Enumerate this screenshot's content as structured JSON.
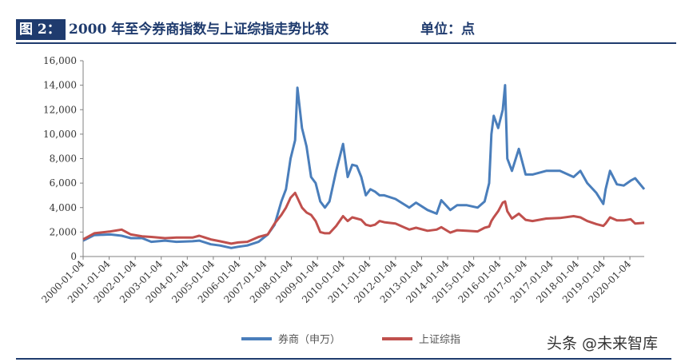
{
  "header": {
    "figure_label": "图 2：",
    "title": "2000 年至今券商指数与上证综指走势比较",
    "unit": "单位：点"
  },
  "watermark": "头条 @未来智库",
  "colors": {
    "brokerage": "#4a7ebb",
    "shanghai": "#c0504d",
    "axis": "#808080",
    "title": "#1f3b6e"
  },
  "chart_data": {
    "type": "line",
    "title": "2000 年至今券商指数与上证综指走势比较",
    "unit": "单位：点",
    "xlabel": "",
    "ylabel": "",
    "ylim": [
      0,
      16000
    ],
    "yticks": [
      0,
      2000,
      4000,
      6000,
      8000,
      10000,
      12000,
      14000,
      16000
    ],
    "ytick_labels": [
      "0",
      "2,000",
      "4,000",
      "6,000",
      "8,000",
      "10,000",
      "12,000",
      "14,000",
      "16,000"
    ],
    "xlim": [
      "2000-01-04",
      "2020-06-30"
    ],
    "xtick_labels": [
      "2000-01-04",
      "2001-01-04",
      "2002-01-04",
      "2003-01-04",
      "2004-01-04",
      "2005-01-04",
      "2006-01-04",
      "2007-01-04",
      "2008-01-04",
      "2009-01-04",
      "2010-01-04",
      "2011-01-04",
      "2012-01-04",
      "2013-01-04",
      "2014-01-04",
      "2015-01-04",
      "2016-01-04",
      "2017-01-04",
      "2017-01-04",
      "2018-01-04",
      "2019-01-04",
      "2020-01-04"
    ],
    "grid": false,
    "legend_position": "bottom",
    "series": [
      {
        "name": "券商（申万）",
        "color": "#4a7ebb",
        "x": [
          "2000-01-04",
          "2000-06-01",
          "2001-01-01",
          "2001-06-01",
          "2001-10-01",
          "2002-03-01",
          "2002-07-01",
          "2003-01-01",
          "2003-06-01",
          "2004-01-01",
          "2004-04-01",
          "2004-09-01",
          "2005-01-01",
          "2005-06-01",
          "2005-09-01",
          "2006-01-01",
          "2006-06-01",
          "2006-10-01",
          "2007-01-01",
          "2007-04-01",
          "2007-06-01",
          "2007-08-01",
          "2007-10-01",
          "2007-11-01",
          "2008-01-01",
          "2008-03-01",
          "2008-05-01",
          "2008-07-01",
          "2008-09-01",
          "2008-11-01",
          "2009-01-01",
          "2009-04-01",
          "2009-07-01",
          "2009-09-01",
          "2009-11-01",
          "2010-01-01",
          "2010-03-01",
          "2010-05-01",
          "2010-07-01",
          "2010-09-01",
          "2010-11-01",
          "2011-01-01",
          "2011-06-01",
          "2011-12-01",
          "2012-03-01",
          "2012-08-01",
          "2012-12-01",
          "2013-02-01",
          "2013-06-01",
          "2013-09-01",
          "2014-01-01",
          "2014-06-01",
          "2014-09-01",
          "2014-11-01",
          "2014-12-01",
          "2015-01-01",
          "2015-03-01",
          "2015-05-01",
          "2015-06-01",
          "2015-07-01",
          "2015-09-01",
          "2015-12-01",
          "2016-03-01",
          "2016-06-01",
          "2016-12-01",
          "2017-06-01",
          "2017-12-01",
          "2018-03-01",
          "2018-06-01",
          "2018-10-01",
          "2019-01-01",
          "2019-02-01",
          "2019-04-01",
          "2019-07-01",
          "2019-10-01",
          "2020-01-01",
          "2020-03-01",
          "2020-06-30"
        ],
        "y": [
          1300,
          1750,
          1800,
          1700,
          1500,
          1500,
          1200,
          1300,
          1200,
          1250,
          1300,
          1000,
          900,
          700,
          800,
          900,
          1200,
          1800,
          2600,
          4500,
          5500,
          8000,
          9500,
          13800,
          10500,
          9000,
          6500,
          6000,
          4500,
          4000,
          4500,
          7000,
          9200,
          6500,
          7500,
          7400,
          6500,
          5000,
          5500,
          5300,
          5000,
          5000,
          4700,
          4000,
          4400,
          3800,
          3500,
          4600,
          3800,
          4200,
          4200,
          4000,
          4500,
          6000,
          10000,
          11500,
          10500,
          12000,
          14000,
          8000,
          7000,
          8800,
          6700,
          6700,
          7000,
          7000,
          6500,
          7000,
          6000,
          5200,
          4300,
          5500,
          7000,
          5900,
          5800,
          6200,
          6400,
          5500
        ]
      },
      {
        "name": "上证综指",
        "color": "#c0504d",
        "x": [
          "2000-01-04",
          "2000-06-01",
          "2001-01-01",
          "2001-06-01",
          "2001-10-01",
          "2002-03-01",
          "2002-07-01",
          "2003-01-01",
          "2003-06-01",
          "2004-01-01",
          "2004-04-01",
          "2004-09-01",
          "2005-01-01",
          "2005-06-01",
          "2005-09-01",
          "2006-01-01",
          "2006-06-01",
          "2006-10-01",
          "2007-01-01",
          "2007-04-01",
          "2007-06-01",
          "2007-08-01",
          "2007-10-01",
          "2007-11-01",
          "2008-01-01",
          "2008-03-01",
          "2008-05-01",
          "2008-07-01",
          "2008-09-01",
          "2008-11-01",
          "2009-01-01",
          "2009-04-01",
          "2009-07-01",
          "2009-09-01",
          "2009-11-01",
          "2010-01-01",
          "2010-03-01",
          "2010-05-01",
          "2010-07-01",
          "2010-09-01",
          "2010-11-01",
          "2011-01-01",
          "2011-06-01",
          "2011-12-01",
          "2012-03-01",
          "2012-08-01",
          "2012-12-01",
          "2013-02-01",
          "2013-06-01",
          "2013-09-01",
          "2014-01-01",
          "2014-06-01",
          "2014-09-01",
          "2014-11-01",
          "2014-12-01",
          "2015-01-01",
          "2015-03-01",
          "2015-05-01",
          "2015-06-01",
          "2015-07-01",
          "2015-09-01",
          "2015-12-01",
          "2016-03-01",
          "2016-06-01",
          "2016-12-01",
          "2017-06-01",
          "2017-12-01",
          "2018-03-01",
          "2018-06-01",
          "2018-10-01",
          "2019-01-01",
          "2019-02-01",
          "2019-04-01",
          "2019-07-01",
          "2019-10-01",
          "2020-01-01",
          "2020-03-01",
          "2020-06-30"
        ],
        "y": [
          1400,
          1900,
          2050,
          2200,
          1800,
          1650,
          1600,
          1500,
          1550,
          1550,
          1700,
          1400,
          1250,
          1050,
          1150,
          1200,
          1600,
          1800,
          2700,
          3400,
          4000,
          4800,
          5200,
          4800,
          4000,
          3600,
          3400,
          2900,
          2000,
          1900,
          1900,
          2500,
          3300,
          2900,
          3200,
          3100,
          3000,
          2600,
          2500,
          2600,
          2900,
          2800,
          2700,
          2200,
          2350,
          2100,
          2200,
          2400,
          1950,
          2150,
          2100,
          2050,
          2350,
          2450,
          2900,
          3200,
          3700,
          4400,
          4500,
          3700,
          3100,
          3500,
          3000,
          2900,
          3100,
          3150,
          3300,
          3200,
          2900,
          2650,
          2500,
          2700,
          3200,
          2950,
          2950,
          3050,
          2700,
          2750
        ]
      }
    ]
  }
}
